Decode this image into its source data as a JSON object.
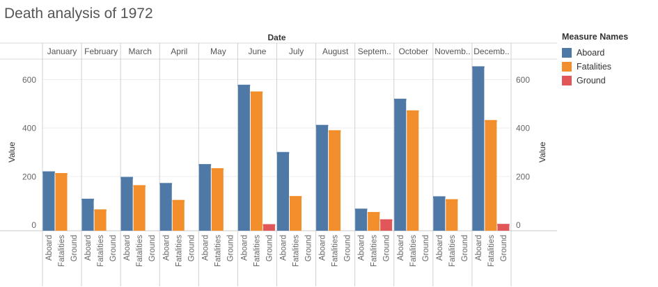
{
  "title": "Death analysis of 1972",
  "legend": {
    "title": "Measure Names",
    "items": [
      {
        "label": "Aboard",
        "color": "#4e79a7"
      },
      {
        "label": "Fatalities",
        "color": "#f28e2b"
      },
      {
        "label": "Ground",
        "color": "#e15759"
      }
    ]
  },
  "chart_data": {
    "type": "bar",
    "title": "Death analysis of 1972",
    "column_header": "Date",
    "ylabel": "Value",
    "ylim": [
      -25,
      680
    ],
    "yticks": [
      0,
      200,
      400,
      600
    ],
    "grid": true,
    "dual_axis": true,
    "legend_position": "right",
    "months": [
      "January",
      "February",
      "March",
      "April",
      "May",
      "June",
      "July",
      "August",
      "Septem..",
      "October",
      "Novemb..",
      "Decemb.."
    ],
    "measures": [
      "Aboard",
      "Fatalities",
      "Ground"
    ],
    "colors": [
      "#4e79a7",
      "#f28e2b",
      "#e15759"
    ],
    "series": [
      {
        "name": "Aboard",
        "values": [
          220,
          107,
          197,
          172,
          250,
          578,
          300,
          412,
          66,
          520,
          117,
          654
        ]
      },
      {
        "name": "Fatalities",
        "values": [
          213,
          63,
          163,
          102,
          233,
          550,
          118,
          390,
          52,
          472,
          105,
          432
        ]
      },
      {
        "name": "Ground",
        "values": [
          0,
          0,
          0,
          0,
          0,
          2,
          0,
          0,
          22,
          0,
          0,
          3
        ]
      }
    ]
  }
}
